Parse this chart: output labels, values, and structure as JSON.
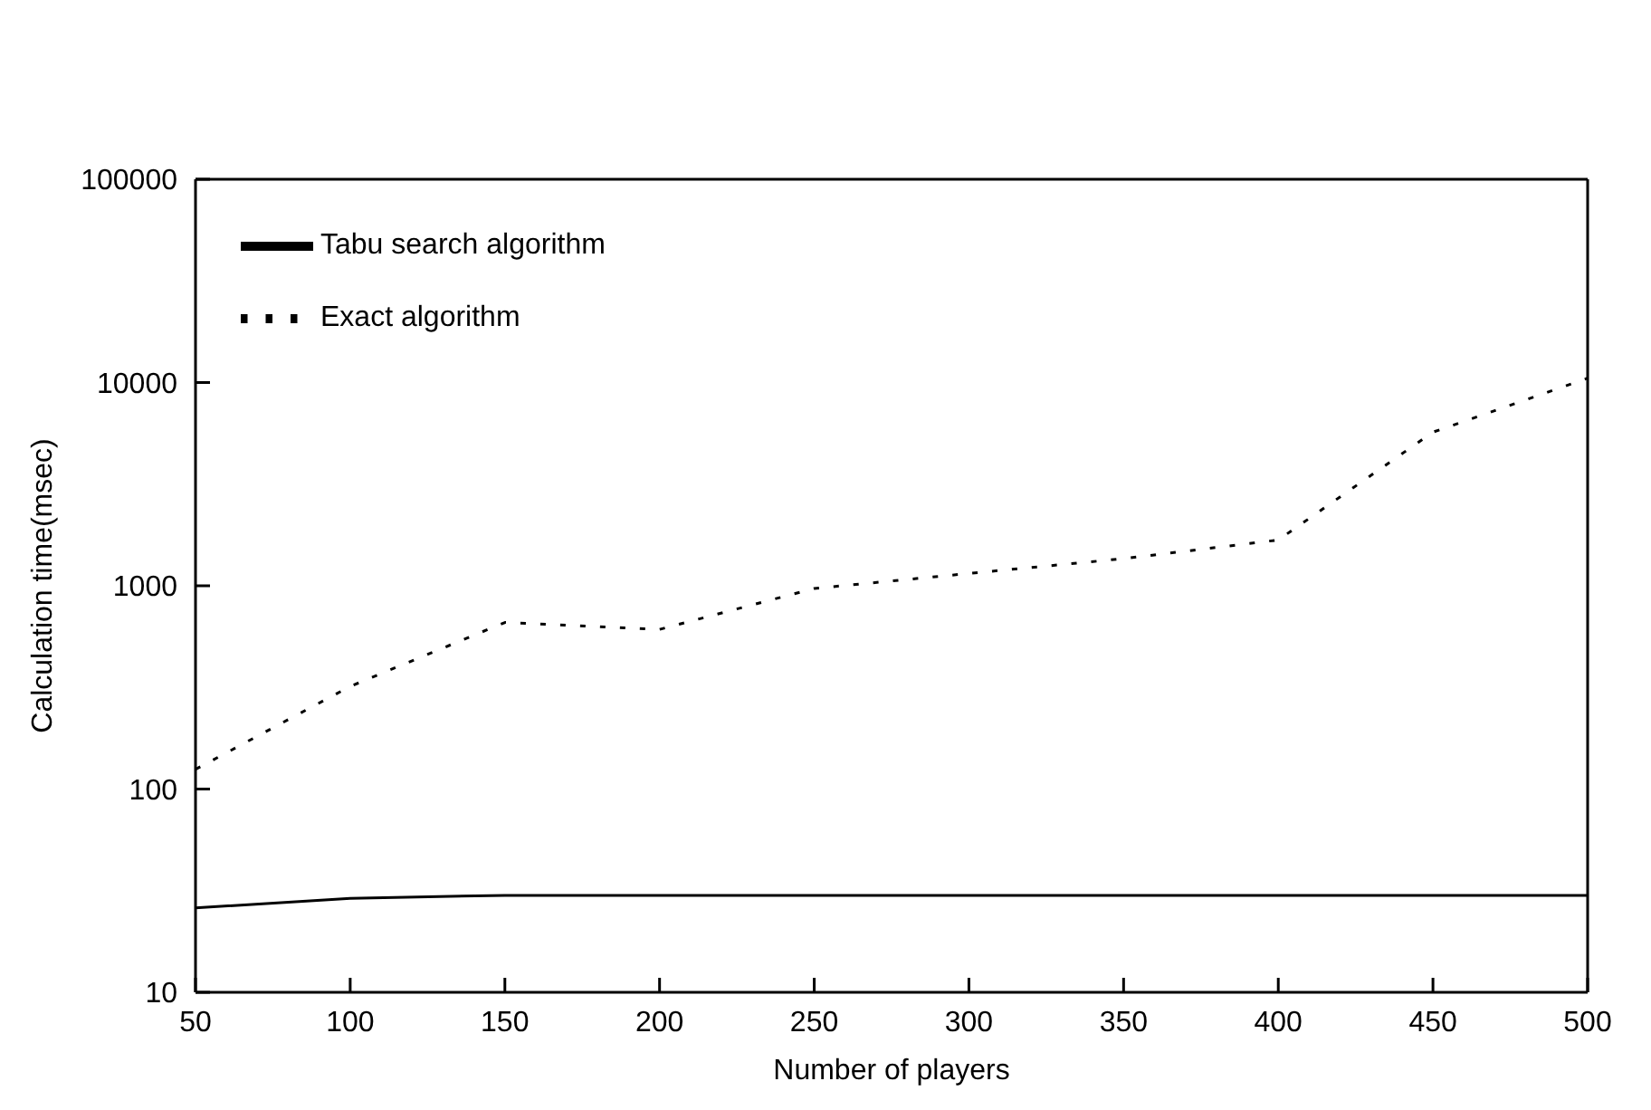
{
  "chart_data": {
    "type": "line",
    "xlabel": "Number of players",
    "ylabel": "Calculation time(msec)",
    "x": [
      50,
      100,
      150,
      200,
      250,
      300,
      350,
      400,
      450,
      500
    ],
    "series": [
      {
        "name": "Tabu search algorithm",
        "color": "#000000",
        "line_style": "solid",
        "values": [
          26,
          29,
          30,
          30,
          30,
          30,
          30,
          30,
          30,
          30
        ]
      },
      {
        "name": "Exact algorithm",
        "color": "#000000",
        "line_style": "dotted",
        "values": [
          125,
          320,
          660,
          610,
          970,
          1150,
          1360,
          1680,
          5700,
          10500
        ]
      }
    ],
    "log": "y",
    "xlim": [
      50,
      500
    ],
    "xticks": [
      50,
      100,
      150,
      200,
      250,
      300,
      350,
      400,
      450,
      500
    ],
    "ylim": [
      10,
      100000
    ],
    "yticks": [
      10,
      100,
      1000,
      10000,
      100000
    ],
    "legend": "top left",
    "marker": "none",
    "grid": false
  }
}
